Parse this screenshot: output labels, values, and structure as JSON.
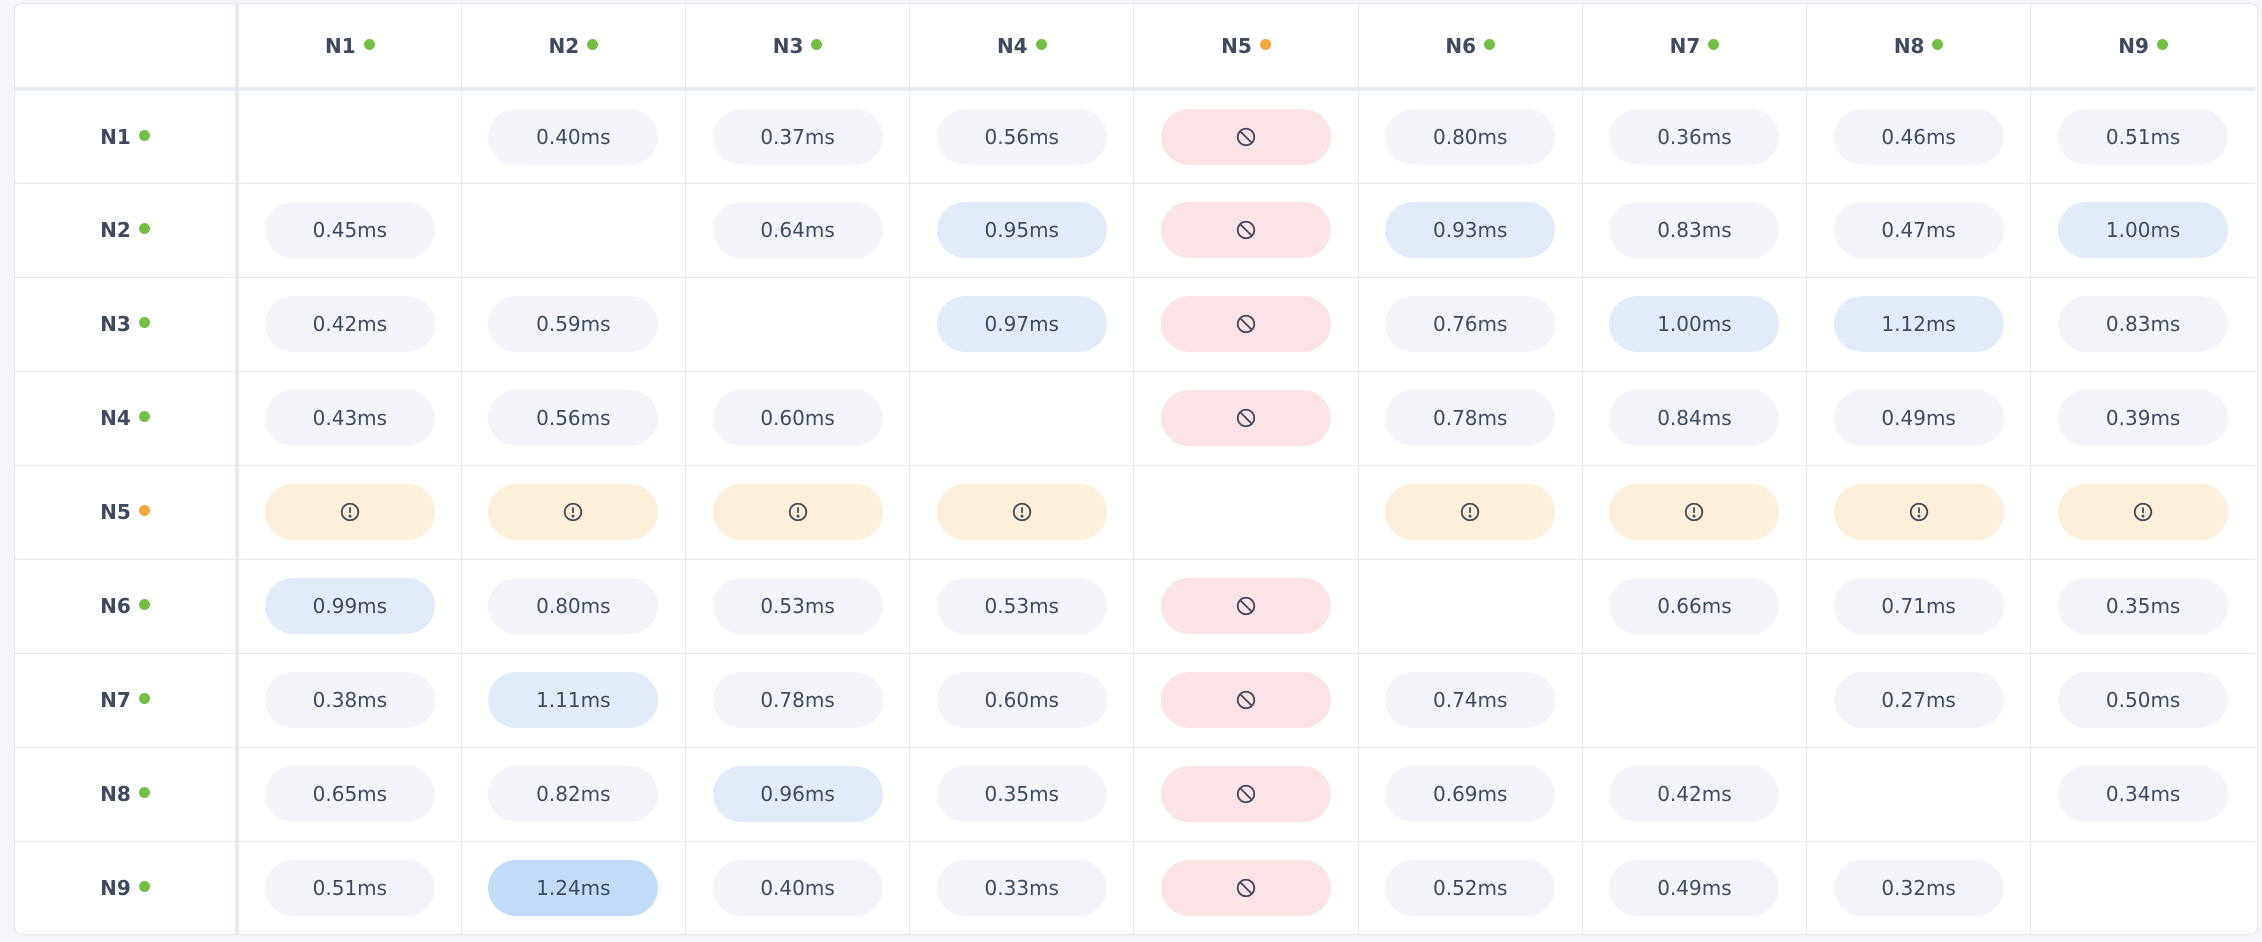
{
  "colors": {
    "online": "#72bf44",
    "degraded": "#f0a93a",
    "pill_default": "#f4f5fa",
    "pill_slow": "#e2ecf8",
    "pill_slowest": "#c2dcf7",
    "pill_blocked": "#fbe4e6",
    "pill_warning": "#fcf0dc"
  },
  "nodes": [
    {
      "label": "N1",
      "status": "online"
    },
    {
      "label": "N2",
      "status": "online"
    },
    {
      "label": "N3",
      "status": "online"
    },
    {
      "label": "N4",
      "status": "online"
    },
    {
      "label": "N5",
      "status": "degraded"
    },
    {
      "label": "N6",
      "status": "online"
    },
    {
      "label": "N7",
      "status": "online"
    },
    {
      "label": "N8",
      "status": "online"
    },
    {
      "label": "N9",
      "status": "online"
    }
  ],
  "icons": {
    "blocked": "ban-icon",
    "warning": "alert-circle-icon"
  },
  "matrix": [
    [
      "",
      "0.40ms",
      "0.37ms",
      "0.56ms",
      "blocked",
      "0.80ms",
      "0.36ms",
      "0.46ms",
      "0.51ms"
    ],
    [
      "0.45ms",
      "",
      "0.64ms",
      "0.95ms",
      "blocked",
      "0.93ms",
      "0.83ms",
      "0.47ms",
      "1.00ms"
    ],
    [
      "0.42ms",
      "0.59ms",
      "",
      "0.97ms",
      "blocked",
      "0.76ms",
      "1.00ms",
      "1.12ms",
      "0.83ms"
    ],
    [
      "0.43ms",
      "0.56ms",
      "0.60ms",
      "",
      "blocked",
      "0.78ms",
      "0.84ms",
      "0.49ms",
      "0.39ms"
    ],
    [
      "warning",
      "warning",
      "warning",
      "warning",
      "",
      "warning",
      "warning",
      "warning",
      "warning"
    ],
    [
      "0.99ms",
      "0.80ms",
      "0.53ms",
      "0.53ms",
      "blocked",
      "",
      "0.66ms",
      "0.71ms",
      "0.35ms"
    ],
    [
      "0.38ms",
      "1.11ms",
      "0.78ms",
      "0.60ms",
      "blocked",
      "0.74ms",
      "",
      "0.27ms",
      "0.50ms"
    ],
    [
      "0.65ms",
      "0.82ms",
      "0.96ms",
      "0.35ms",
      "blocked",
      "0.69ms",
      "0.42ms",
      "",
      "0.34ms"
    ],
    [
      "0.51ms",
      "1.24ms",
      "0.40ms",
      "0.33ms",
      "blocked",
      "0.52ms",
      "0.49ms",
      "0.32ms",
      ""
    ]
  ]
}
